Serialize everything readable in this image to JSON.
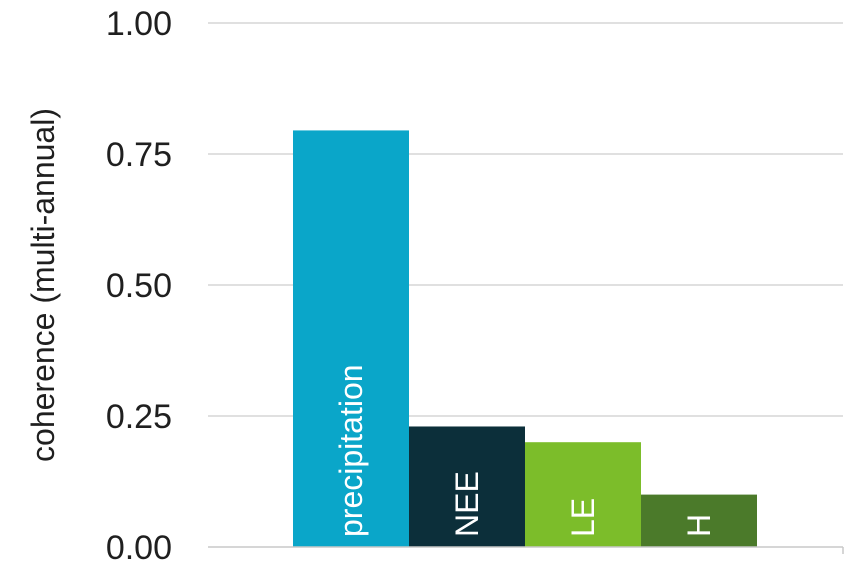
{
  "chart_data": {
    "type": "bar",
    "categories": [
      "precipitation",
      "NEE",
      "LE",
      "H"
    ],
    "values": [
      0.795,
      0.23,
      0.2,
      0.1
    ],
    "colors": [
      "#0aa6c9",
      "#0c2f3a",
      "#7cbd2a",
      "#4b7a2a"
    ],
    "ylabel": "coherence (multi-annual)",
    "ylim": [
      0,
      1
    ],
    "yticks": [
      "0.00",
      "0.25",
      "0.50",
      "0.75",
      "1.00"
    ],
    "ytick_values": [
      0,
      0.25,
      0.5,
      0.75,
      1.0
    ],
    "grid": true,
    "legend": "none"
  }
}
